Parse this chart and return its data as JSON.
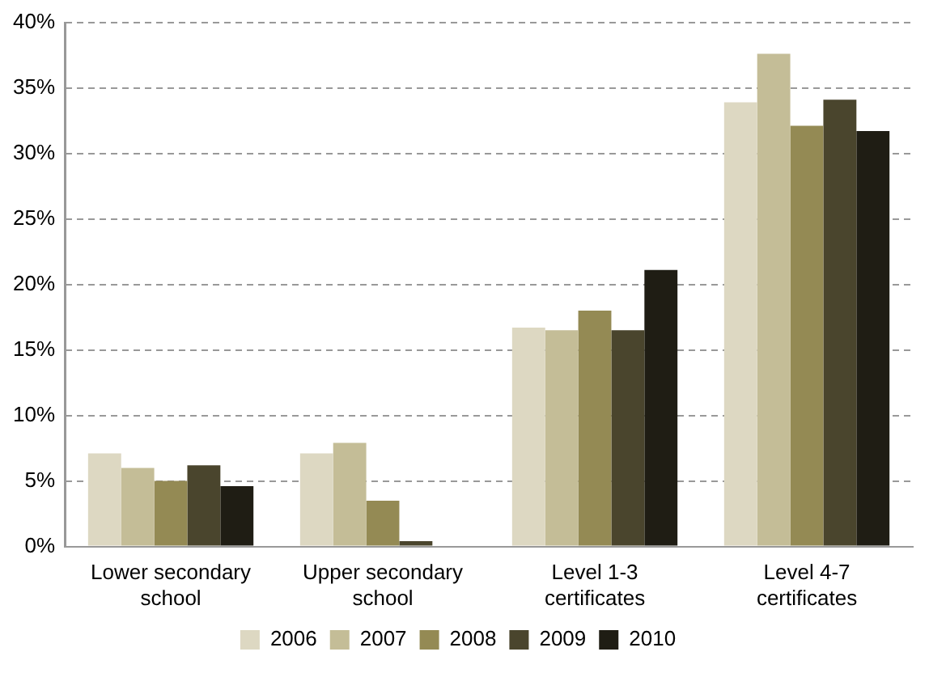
{
  "chart_data": {
    "type": "bar",
    "categories": [
      "Lower secondary school",
      "Upper secondary school",
      "Level 1-3 certificates",
      "Level 4-7 certificates"
    ],
    "series": [
      {
        "name": "2006",
        "color": "#ddd8c2",
        "values": [
          7.1,
          7.1,
          16.7,
          33.9
        ]
      },
      {
        "name": "2007",
        "color": "#c4bd97",
        "values": [
          6.0,
          7.9,
          16.5,
          37.6
        ]
      },
      {
        "name": "2008",
        "color": "#948a54",
        "values": [
          5.0,
          3.5,
          18.0,
          32.1
        ]
      },
      {
        "name": "2009",
        "color": "#4a452d",
        "values": [
          6.2,
          0.4,
          16.5,
          34.1
        ]
      },
      {
        "name": "2010",
        "color": "#1f1d14",
        "values": [
          4.6,
          0,
          21.1,
          31.7
        ]
      }
    ],
    "ylim": [
      0,
      40
    ],
    "yticks": [
      {
        "value": 0,
        "label": "0%"
      },
      {
        "value": 5,
        "label": "5%"
      },
      {
        "value": 10,
        "label": "10%"
      },
      {
        "value": 15,
        "label": "15%"
      },
      {
        "value": 20,
        "label": "20%"
      },
      {
        "value": 25,
        "label": "25%"
      },
      {
        "value": 30,
        "label": "30%"
      },
      {
        "value": 35,
        "label": "35%"
      },
      {
        "value": 40,
        "label": "40%"
      }
    ],
    "grid": "y",
    "legend": "bottom"
  }
}
